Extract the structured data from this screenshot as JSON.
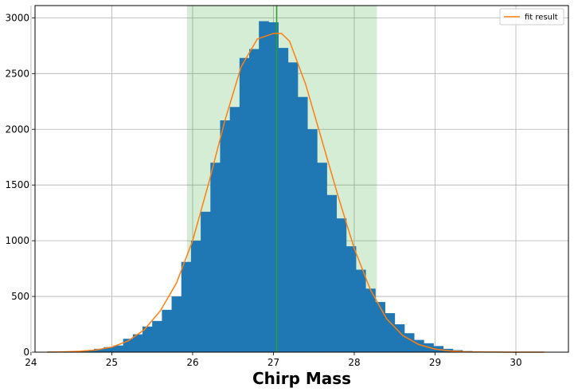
{
  "chart_data": {
    "type": "bar",
    "xlabel": "Chirp Mass",
    "ylabel": "",
    "xlim": [
      24.05,
      30.65
    ],
    "ylim": [
      0,
      3110
    ],
    "grid": true,
    "legend_position": "top-right",
    "xticks": [
      "24",
      "25",
      "26",
      "27",
      "28",
      "29",
      "30"
    ],
    "yticks": [
      "0",
      "500",
      "1000",
      "1500",
      "2000",
      "2500",
      "3000"
    ],
    "bin_width": 0.12,
    "histogram": {
      "bin_starts": [
        24.18,
        24.3,
        24.42,
        24.54,
        24.66,
        24.78,
        24.9,
        25.02,
        25.14,
        25.26,
        25.38,
        25.5,
        25.62,
        25.74,
        25.86,
        25.98,
        26.1,
        26.22,
        26.34,
        26.46,
        26.58,
        26.7,
        26.82,
        26.94,
        27.06,
        27.18,
        27.3,
        27.42,
        27.54,
        27.66,
        27.78,
        27.9,
        28.02,
        28.14,
        28.26,
        28.38,
        28.5,
        28.62,
        28.74,
        28.86,
        28.98,
        29.1,
        29.22,
        29.34,
        29.46,
        29.58,
        29.7,
        29.82,
        29.94,
        30.06,
        30.18
      ],
      "counts": [
        2,
        3,
        5,
        10,
        18,
        30,
        45,
        60,
        120,
        160,
        230,
        280,
        380,
        500,
        810,
        1000,
        1260,
        1700,
        2080,
        2200,
        2640,
        2720,
        2970,
        2960,
        2730,
        2600,
        2290,
        2000,
        1700,
        1410,
        1200,
        950,
        740,
        570,
        450,
        350,
        250,
        170,
        110,
        80,
        55,
        30,
        18,
        10,
        6,
        4,
        3,
        2,
        1,
        1,
        1
      ]
    },
    "interval": {
      "low": 25.93,
      "high": 28.28,
      "median": 27.04
    },
    "series": [
      {
        "name": "fit result",
        "x": [
          24.2,
          24.4,
          24.6,
          24.8,
          25.0,
          25.2,
          25.4,
          25.6,
          25.8,
          26.0,
          26.2,
          26.4,
          26.6,
          26.8,
          27.0,
          27.1,
          27.2,
          27.4,
          27.6,
          27.8,
          28.0,
          28.2,
          28.4,
          28.6,
          28.8,
          29.0,
          29.2,
          29.4,
          29.6,
          29.8,
          30.0,
          30.2,
          30.35
        ],
        "y": [
          1,
          3,
          8,
          20,
          45,
          100,
          200,
          370,
          620,
          1000,
          1520,
          2080,
          2560,
          2810,
          2860,
          2860,
          2790,
          2400,
          1900,
          1400,
          930,
          560,
          300,
          150,
          68,
          28,
          10,
          4,
          1.5,
          0.5,
          0.2,
          0.1,
          0
        ]
      }
    ],
    "colors": {
      "bars": "#1f77b4",
      "interval_fill": "#2ca02c",
      "fit_line": "#ff7f0e",
      "median_line": "#2ca02c"
    }
  }
}
